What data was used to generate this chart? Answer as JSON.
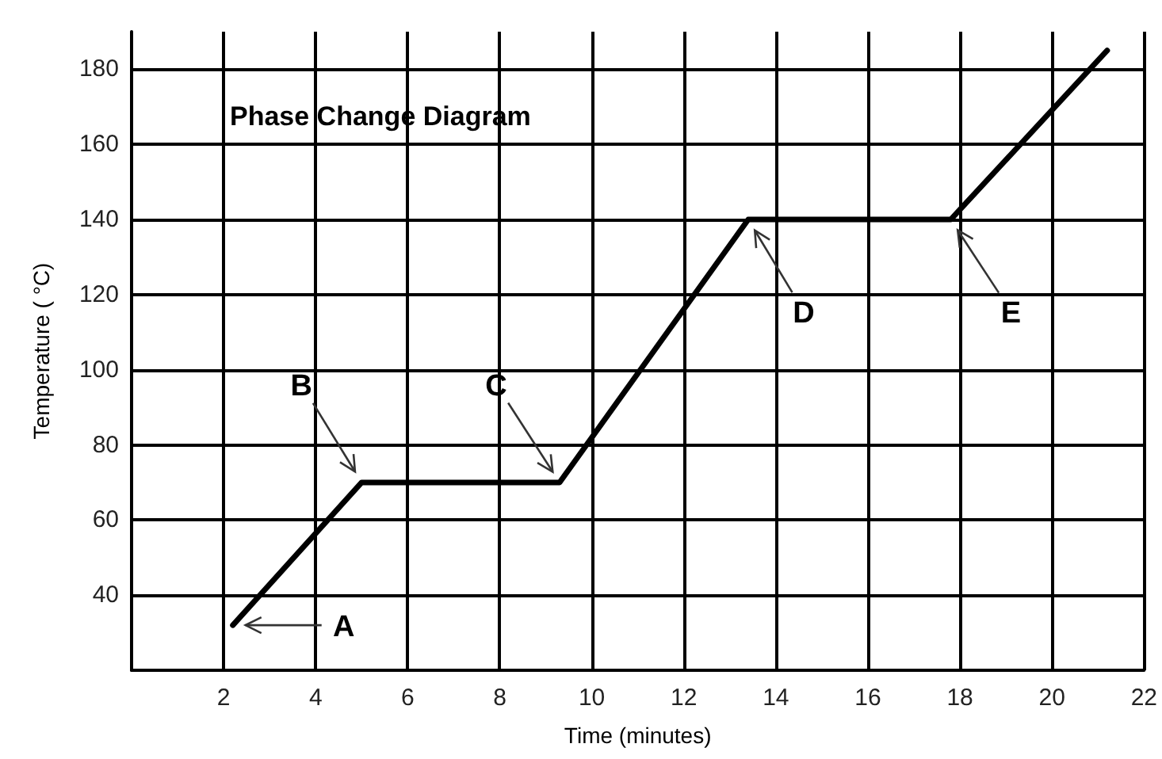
{
  "chart_data": {
    "type": "line",
    "title": "Phase Change Diagram",
    "xlabel": "Time (minutes)",
    "ylabel": "Temperature ( °C)",
    "x": [
      2.2,
      5,
      9.3,
      13.4,
      17.8,
      21.2
    ],
    "series": [
      {
        "color": "#000000",
        "values": [
          32,
          70,
          70,
          140,
          140,
          185
        ]
      }
    ],
    "xlim": [
      0,
      22
    ],
    "xticks": [
      2,
      4,
      6,
      8,
      10,
      12,
      14,
      16,
      18,
      20,
      22
    ],
    "ylim": [
      20,
      190
    ],
    "yticks": [
      40,
      60,
      80,
      100,
      120,
      140,
      160,
      180
    ],
    "grid": true,
    "marker": "none",
    "line_style": "solid",
    "annotations": [
      {
        "text": "A",
        "x": 2.2,
        "y": 32
      },
      {
        "text": "B",
        "x": 5,
        "y": 70
      },
      {
        "text": "C",
        "x": 9.3,
        "y": 70
      },
      {
        "text": "D",
        "x": 13.4,
        "y": 140
      },
      {
        "text": "E",
        "x": 17.8,
        "y": 140
      }
    ]
  }
}
